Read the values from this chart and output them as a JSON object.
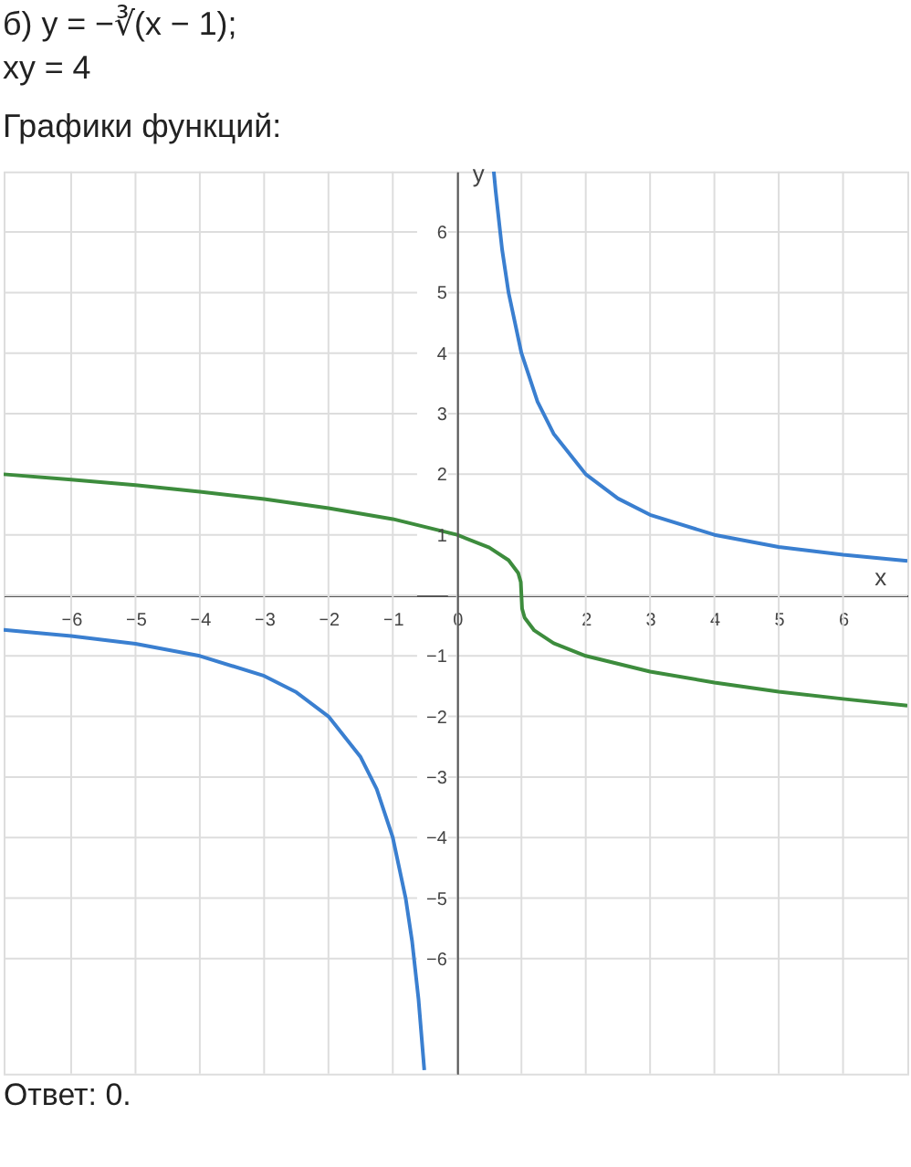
{
  "chart_data": {
    "type": "line",
    "title": "б) y = −∛(x − 1);\n    xy = 4",
    "subtitle": "Графики функций:",
    "xlabel": "x",
    "ylabel": "y",
    "annotations": [
      "Ответ:  0."
    ],
    "xlim": [
      -7.05,
      7.0
    ],
    "ylim": [
      -7.9,
      7.0
    ],
    "xticks": [
      -6,
      -5,
      -4,
      -3,
      -2,
      -1,
      0,
      {
        "value": 1,
        "label": null
      },
      2,
      3,
      4,
      5,
      6
    ],
    "yticks": [
      -6,
      -5,
      -4,
      -3,
      -2,
      -1,
      {
        "value": 0,
        "label": null
      },
      1,
      2,
      3,
      4,
      5,
      6
    ],
    "grid": true,
    "line_style": "solid",
    "marker": "none",
    "series": [
      {
        "color": "#3a7fd0",
        "x": [
          0.57,
          0.6,
          0.7,
          0.8,
          1,
          1.25,
          1.5,
          2,
          2.5,
          3,
          4,
          5,
          6,
          7
        ],
        "values": [
          7.0,
          6.67,
          5.71,
          5.0,
          4.0,
          3.2,
          2.67,
          2.0,
          1.6,
          1.33,
          1.0,
          0.8,
          0.67,
          0.57
        ]
      },
      {
        "color": "#3a7fd0",
        "x": [
          -7.05,
          -6,
          -5,
          -4,
          -3,
          -2.5,
          -2,
          -1.5,
          -1.25,
          -1,
          -0.8,
          -0.7,
          -0.6,
          -0.51
        ],
        "values": [
          -0.57,
          -0.67,
          -0.8,
          -1.0,
          -1.33,
          -1.6,
          -2.0,
          -2.67,
          -3.2,
          -4.0,
          -5.0,
          -5.71,
          -6.67,
          -7.84
        ]
      },
      {
        "color": "#3d8c3d",
        "x": [
          -7.05,
          -6,
          -5,
          -4,
          -3,
          -2,
          -1,
          0,
          0.5,
          0.8,
          0.95,
          0.99,
          1,
          1.01,
          1.05,
          1.2,
          1.5,
          2,
          3,
          4,
          5,
          6,
          7
        ],
        "values": [
          2.0,
          1.91,
          1.82,
          1.71,
          1.59,
          1.44,
          1.26,
          1.0,
          0.79,
          0.58,
          0.37,
          0.22,
          0.0,
          -0.22,
          -0.37,
          -0.58,
          -0.79,
          -1.0,
          -1.26,
          -1.44,
          -1.59,
          -1.71,
          -1.82
        ]
      }
    ]
  }
}
